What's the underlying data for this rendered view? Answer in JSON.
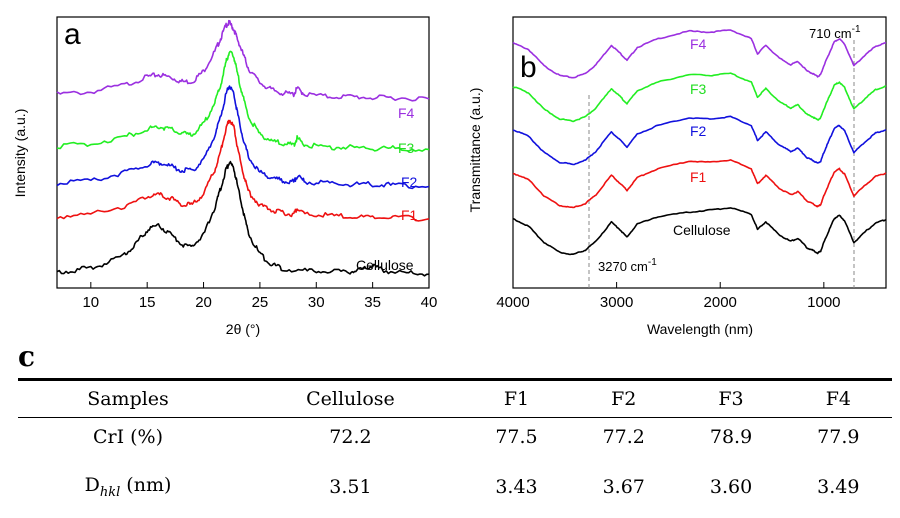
{
  "chart_data": [
    {
      "panel": "a",
      "type": "line",
      "xlabel": "2θ (°)",
      "ylabel": "Intensity (a.u.)",
      "xlim": [
        7,
        40
      ],
      "x_ticks": [
        "10",
        "15",
        "20",
        "25",
        "30",
        "35",
        "40"
      ],
      "series": [
        {
          "name": "F4",
          "color": "#9b30e0",
          "x": [
            7,
            10,
            13,
            15,
            16,
            17,
            18,
            19,
            20,
            21,
            21.5,
            22,
            22.3,
            22.7,
            23,
            23.5,
            24,
            25,
            26,
            27,
            28,
            28.3,
            29,
            31,
            33,
            35,
            37,
            40
          ],
          "y": [
            15.8,
            16.0,
            16.6,
            17.3,
            17.5,
            17.3,
            16.9,
            16.9,
            17.8,
            19.5,
            20.6,
            21.8,
            22.0,
            21.4,
            20.6,
            19.3,
            18.0,
            16.8,
            16.2,
            15.9,
            15.8,
            16.3,
            15.8,
            15.6,
            15.6,
            15.5,
            15.5,
            15.4
          ]
        },
        {
          "name": "F3",
          "color": "#22ee22",
          "x": [
            7,
            10,
            13,
            15,
            16,
            17,
            18,
            19,
            20,
            21,
            21.5,
            22,
            22.3,
            22.7,
            23,
            23.5,
            24,
            25,
            26,
            27,
            28,
            28.3,
            29,
            31,
            33,
            35,
            37,
            40
          ],
          "y": [
            11.3,
            11.5,
            12.1,
            12.8,
            13.0,
            12.8,
            12.4,
            12.3,
            13.2,
            15.1,
            16.5,
            18.6,
            19.5,
            19.0,
            17.6,
            15.6,
            13.8,
            12.3,
            11.8,
            11.5,
            11.4,
            12.0,
            11.4,
            11.2,
            11.2,
            11.1,
            11.1,
            11.0
          ]
        },
        {
          "name": "F2",
          "color": "#1111dd",
          "x": [
            7,
            10,
            13,
            15,
            16,
            17,
            18,
            19,
            20,
            21,
            21.5,
            22,
            22.3,
            22.7,
            23,
            23.5,
            24,
            25,
            26,
            27,
            28,
            28.3,
            29,
            31,
            33,
            35,
            37,
            40
          ],
          "y": [
            8.1,
            8.3,
            9.0,
            9.7,
            9.9,
            9.6,
            9.2,
            9.2,
            10.1,
            12.2,
            13.8,
            15.8,
            16.6,
            15.8,
            14.2,
            12.0,
            10.3,
            9.0,
            8.6,
            8.3,
            8.2,
            8.7,
            8.2,
            8.1,
            8.0,
            8.0,
            7.9,
            7.8
          ]
        },
        {
          "name": "F1",
          "color": "#ee1111",
          "x": [
            7,
            10,
            13,
            15,
            16,
            17,
            18,
            19,
            20,
            21,
            21.5,
            22,
            22.3,
            22.7,
            23,
            23.5,
            24,
            25,
            26,
            27,
            28,
            28.3,
            29,
            31,
            33,
            35,
            37,
            40
          ],
          "y": [
            5.2,
            5.4,
            6.1,
            6.9,
            7.1,
            6.8,
            6.3,
            6.2,
            7.2,
            9.2,
            10.8,
            12.8,
            13.6,
            12.9,
            11.2,
            9.0,
            7.3,
            6.2,
            5.8,
            5.5,
            5.4,
            5.9,
            5.4,
            5.3,
            5.2,
            5.1,
            5.1,
            5.0
          ]
        },
        {
          "name": "Cellulose",
          "color": "#000000",
          "x": [
            7,
            9,
            11,
            13,
            14,
            15,
            16,
            17,
            18,
            19,
            20,
            21,
            21.5,
            22,
            22.3,
            22.7,
            23,
            23.5,
            24,
            25,
            26,
            27,
            29,
            31,
            33,
            34,
            35,
            36,
            38,
            40
          ],
          "y": [
            0.4,
            0.6,
            1.0,
            1.9,
            2.9,
            4.0,
            4.4,
            3.8,
            2.8,
            2.6,
            3.6,
            6.0,
            7.6,
            9.3,
            9.9,
            9.3,
            7.9,
            5.7,
            3.7,
            1.9,
            1.1,
            0.7,
            0.5,
            0.4,
            0.4,
            0.6,
            0.9,
            0.5,
            0.3,
            0.2
          ]
        }
      ]
    },
    {
      "panel": "b",
      "type": "line",
      "xlabel": "Wavelength (nm)",
      "ylabel": "Transmittance (a.u.)",
      "xlim": [
        4000,
        400
      ],
      "x_ticks": [
        "4000",
        "3000",
        "2000",
        "1000"
      ],
      "annotations": [
        "710 cm-1",
        "3270 cm-1"
      ],
      "series": [
        {
          "name": "F4",
          "color": "#9b30e0",
          "x": [
            4000,
            3850,
            3700,
            3550,
            3420,
            3300,
            3200,
            3050,
            2960,
            2900,
            2800,
            2600,
            2300,
            2100,
            1900,
            1700,
            1640,
            1560,
            1430,
            1320,
            1250,
            1160,
            1110,
            1060,
            1030,
            1000,
            950,
            900,
            850,
            800,
            710,
            600,
            500,
            400
          ],
          "y": [
            19.6,
            19.0,
            17.5,
            16.6,
            16.4,
            16.8,
            17.6,
            19.4,
            18.6,
            18.0,
            19.2,
            20.0,
            20.7,
            20.6,
            20.8,
            20.0,
            18.6,
            19.4,
            18.2,
            17.6,
            17.9,
            17.0,
            16.8,
            16.5,
            16.7,
            17.5,
            18.6,
            19.7,
            20.0,
            19.5,
            17.5,
            18.5,
            19.3,
            19.6
          ]
        },
        {
          "name": "F3",
          "color": "#22ee22",
          "x": [
            4000,
            3850,
            3700,
            3550,
            3420,
            3300,
            3200,
            3050,
            2960,
            2900,
            2800,
            2600,
            2300,
            2100,
            1900,
            1700,
            1640,
            1560,
            1430,
            1320,
            1250,
            1160,
            1110,
            1060,
            1030,
            1000,
            950,
            900,
            850,
            800,
            710,
            600,
            500,
            400
          ],
          "y": [
            15.6,
            15.0,
            13.5,
            12.6,
            12.4,
            12.8,
            13.6,
            15.4,
            14.6,
            14.0,
            15.2,
            16.0,
            16.7,
            16.6,
            16.8,
            16.0,
            14.6,
            15.4,
            14.2,
            13.6,
            13.9,
            13.0,
            12.8,
            12.5,
            12.7,
            13.5,
            14.6,
            15.7,
            16.0,
            15.5,
            13.5,
            14.5,
            15.3,
            15.6
          ]
        },
        {
          "name": "F2",
          "color": "#1111dd",
          "x": [
            4000,
            3850,
            3700,
            3550,
            3420,
            3300,
            3200,
            3050,
            2960,
            2900,
            2800,
            2600,
            2300,
            2100,
            1900,
            1700,
            1640,
            1560,
            1430,
            1320,
            1250,
            1160,
            1110,
            1060,
            1030,
            1000,
            950,
            900,
            850,
            800,
            710,
            600,
            500,
            400
          ],
          "y": [
            11.6,
            11.0,
            9.5,
            8.6,
            8.4,
            8.8,
            9.6,
            11.4,
            10.6,
            10.0,
            11.2,
            12.0,
            12.7,
            12.6,
            12.8,
            12.0,
            10.6,
            11.4,
            10.2,
            9.6,
            9.9,
            9.0,
            8.8,
            8.5,
            8.7,
            9.5,
            10.6,
            11.7,
            12.0,
            11.5,
            9.5,
            10.5,
            11.3,
            11.6
          ]
        },
        {
          "name": "F1",
          "color": "#ee1111",
          "x": [
            4000,
            3850,
            3700,
            3550,
            3420,
            3300,
            3200,
            3050,
            2960,
            2900,
            2800,
            2600,
            2300,
            2100,
            1900,
            1700,
            1640,
            1560,
            1430,
            1320,
            1250,
            1160,
            1110,
            1060,
            1030,
            1000,
            950,
            900,
            850,
            800,
            710,
            600,
            500,
            400
          ],
          "y": [
            7.6,
            7.0,
            5.5,
            4.6,
            4.4,
            4.8,
            5.6,
            7.4,
            6.6,
            6.0,
            7.2,
            8.0,
            8.7,
            8.6,
            8.8,
            8.0,
            6.6,
            7.4,
            6.2,
            5.6,
            5.9,
            5.0,
            4.8,
            4.5,
            4.7,
            5.5,
            6.6,
            7.7,
            8.0,
            7.5,
            5.5,
            6.5,
            7.3,
            7.6
          ]
        },
        {
          "name": "Cellulose",
          "color": "#000000",
          "x": [
            4000,
            3850,
            3700,
            3550,
            3420,
            3300,
            3200,
            3050,
            2960,
            2900,
            2800,
            2600,
            2300,
            2100,
            1900,
            1700,
            1640,
            1560,
            1430,
            1320,
            1250,
            1160,
            1110,
            1060,
            1030,
            1000,
            950,
            900,
            850,
            800,
            710,
            600,
            500,
            400
          ],
          "y": [
            3.4,
            2.7,
            1.2,
            0.3,
            0.1,
            0.5,
            1.3,
            3.1,
            2.3,
            1.7,
            2.9,
            3.6,
            4.0,
            4.2,
            4.4,
            3.8,
            2.4,
            3.1,
            1.9,
            1.3,
            1.6,
            0.7,
            0.5,
            0.2,
            0.4,
            1.2,
            2.3,
            3.4,
            3.7,
            3.2,
            1.2,
            2.2,
            3.0,
            3.3
          ]
        }
      ]
    },
    {
      "panel": "c",
      "type": "table",
      "columns": [
        "Samples",
        "Cellulose",
        "F1",
        "F2",
        "F3",
        "F4"
      ],
      "rows": [
        {
          "label": "CrI (%)",
          "values": [
            "72.2",
            "77.5",
            "77.2",
            "78.9",
            "77.9"
          ]
        },
        {
          "label_main": "D",
          "label_sub": "hkl",
          "label_rest": " (nm)",
          "values": [
            "3.51",
            "3.43",
            "3.67",
            "3.60",
            "3.49"
          ]
        }
      ]
    }
  ],
  "panel_a": {
    "letter": "a",
    "xlabel": "2θ (°)",
    "ylabel": "Intensity (a.u.)",
    "ticks": [
      "10",
      "15",
      "20",
      "25",
      "30",
      "35",
      "40"
    ],
    "labels": [
      "F4",
      "F3",
      "F2",
      "F1",
      "Cellulose"
    ]
  },
  "panel_b": {
    "letter": "b",
    "xlabel": "Wavelength (nm)",
    "ylabel": "Transmittance (a.u.)",
    "ticks": [
      "4000",
      "3000",
      "2000",
      "1000"
    ],
    "labels": [
      "F4",
      "F3",
      "F2",
      "F1",
      "Cellulose"
    ],
    "ann_710": "710 cm",
    "ann_3270": "3270 cm",
    "ann_sup": "-1"
  },
  "panel_c": {
    "letter": "c",
    "columns": [
      "Samples",
      "Cellulose",
      "F1",
      "F2",
      "F3",
      "F4"
    ],
    "row1_label": "CrI (%)",
    "row1": [
      "72.2",
      "77.5",
      "77.2",
      "78.9",
      "77.9"
    ],
    "row2_label_main": "D",
    "row2_label_sub": "hkl",
    "row2_label_rest": " (nm)",
    "row2": [
      "3.51",
      "3.43",
      "3.67",
      "3.60",
      "3.49"
    ]
  }
}
